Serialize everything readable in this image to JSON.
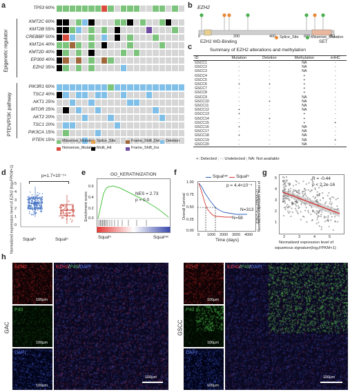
{
  "panel_labels": {
    "a": "a",
    "b": "b",
    "c": "c",
    "d": "d",
    "e": "e",
    "f": "f",
    "g": "g",
    "h": "h"
  },
  "panel_a": {
    "group_epigenetic": "Epigenetic regulator",
    "group_pi3k": "PTEN/PI3K pathway",
    "genes": [
      {
        "name": "TP53",
        "pct": "60%"
      },
      {
        "name": "KMT2C",
        "pct": "60%"
      },
      {
        "name": "KMT2B",
        "pct": "55%"
      },
      {
        "name": "CREBBP",
        "pct": "50%"
      },
      {
        "name": "KMT2A",
        "pct": "40%"
      },
      {
        "name": "KMT2D",
        "pct": "40%"
      },
      {
        "name": "EP300",
        "pct": "40%"
      },
      {
        "name": "EZH2",
        "pct": "35%"
      },
      {
        "name": "PIK3R1",
        "pct": "60%"
      },
      {
        "name": "TSC2",
        "pct": "40%"
      },
      {
        "name": "AKT1",
        "pct": "25%"
      },
      {
        "name": "MTOR",
        "pct": "25%"
      },
      {
        "name": "AKT2",
        "pct": "20%"
      },
      {
        "name": "TSC1",
        "pct": "20%"
      },
      {
        "name": "PIK3CA",
        "pct": "15%"
      },
      {
        "name": "PTEN",
        "pct": "15%"
      }
    ],
    "legend": [
      {
        "label": "Missense_Mutation",
        "color": "#7cc47c"
      },
      {
        "label": "Splice_Site",
        "color": "#e8a04c"
      },
      {
        "label": "Frame_Shift_Del",
        "color": "#a0673a"
      },
      {
        "label": "Deletion",
        "color": "#7fbfe8"
      },
      {
        "label": "Nonsense_Mutation",
        "color": "#d94c3d"
      },
      {
        "label": "Multi_Hit",
        "color": "#000000"
      },
      {
        "label": "Frame_Shift_Ins",
        "color": "#6f4aa0"
      }
    ]
  },
  "panel_b": {
    "gene": "EZH2",
    "domain1": "EZH2 WD-Binding",
    "domain2": "SET",
    "ticks": [
      "0",
      "200",
      "400",
      "600",
      "751"
    ],
    "legend_splice": "Splice_Site",
    "legend_missense": "Missense_Mutation"
  },
  "panel_c": {
    "title": "Summary of EZH2 alterations and methylation",
    "headers": [
      "ID",
      "Mutation",
      "Deletion",
      "Methylation",
      "mIHC"
    ],
    "rows": [
      [
        "GSCC1",
        "-",
        "-",
        "NA",
        "-"
      ],
      [
        "GSCC2",
        "-",
        "-",
        "NA",
        "-"
      ],
      [
        "GSCC3",
        "-",
        "-",
        "NA",
        "-"
      ],
      [
        "GSCC4",
        "-",
        "-",
        "+",
        "-"
      ],
      [
        "GSCC5",
        "-",
        "-",
        "+",
        "-"
      ],
      [
        "GSCC6",
        "+",
        "+",
        "+",
        "-"
      ],
      [
        "GSCC7",
        "-",
        "-",
        "+",
        "-"
      ],
      [
        "GSCC8",
        "-",
        "-",
        "+",
        "-"
      ],
      [
        "GSCC9",
        "-",
        "-",
        "NA",
        "-"
      ],
      [
        "GSCC10",
        "-",
        "+",
        "NA",
        "-"
      ],
      [
        "GSCC11",
        "-",
        "-",
        "NA",
        "-"
      ],
      [
        "GSCC12",
        "+",
        "-",
        "NA",
        "-"
      ],
      [
        "GSCC13",
        "+",
        "-",
        "+",
        "-"
      ],
      [
        "GSCC14",
        "-",
        "+",
        "+",
        "-"
      ],
      [
        "GSCC15",
        "-",
        "-",
        "+",
        "+"
      ],
      [
        "GSCC16",
        "+",
        "-",
        "NA",
        "-"
      ],
      [
        "GSCC17",
        "-",
        "-",
        "NA",
        "-"
      ],
      [
        "GSCC18",
        "+",
        "-",
        "NA",
        "-"
      ],
      [
        "GSCC19",
        "-",
        "-",
        "NA",
        "+"
      ],
      [
        "GSCC20",
        "-",
        "-",
        "NA",
        "-"
      ]
    ],
    "footnote": "+: Detected ; - : Undetected ; NA: Not available"
  },
  "panel_d": {
    "ylabel1": "Normalized expression level of ",
    "ylabel2": "EZH2",
    "ylabel3": " (log₂FPKM+1)",
    "pvalue": "p=1.7×10⁻¹⁴",
    "groups": [
      "Squaʰᶦ",
      "Squaˡᵒ"
    ],
    "yticks": [
      "0",
      "1",
      "2",
      "3",
      "4",
      "5"
    ]
  },
  "panel_e": {
    "title": "GO_KERATINIZATION",
    "nes": "NES = 2.73",
    "p": "p = 0.0",
    "ylabel": "Enrichment score",
    "yticks": [
      "0.0",
      "0.2",
      "0.4",
      "0.6"
    ],
    "left": "Squaʰᶦ",
    "right": "Squaˡᵒʷ"
  },
  "panel_f": {
    "legend_low": "Squaˡᵒʷ",
    "legend_hi": "Squaʰᶦ",
    "pvalue": "p = 4.4×10⁻⁴",
    "n1": "N=313",
    "n2": "N=58",
    "ylabel": "Overall Survival",
    "xlabel": "Time (days)",
    "yticks": [
      "0.00",
      "0.25",
      "0.50",
      "0.75",
      "1.00"
    ],
    "xticks": [
      "0",
      "1000",
      "2000",
      "3000",
      "4000"
    ]
  },
  "panel_g": {
    "r": "R = -0.44",
    "p": "p < 2.2e-16",
    "ylabel1": "Normalized expression level of",
    "ylabel2": "EZH2 (log₂FPKM+1)",
    "xlabel1": "Normalized expression level of",
    "xlabel2": "squamous signature(log₂FPKM+1)",
    "xticks": [
      "2",
      "3",
      "4",
      "5"
    ],
    "yticks": [
      "1",
      "2",
      "3",
      "4",
      "5"
    ]
  },
  "panel_h": {
    "gac": "GAC",
    "gscc": "GSCC",
    "ezh2": "EZH2",
    "p40": "P40",
    "dapi": "DAPI",
    "merge_ezh2": "EZH2",
    "merge_p40": "P40",
    "merge_dapi": "DAPI",
    "scale": "100μm"
  }
}
